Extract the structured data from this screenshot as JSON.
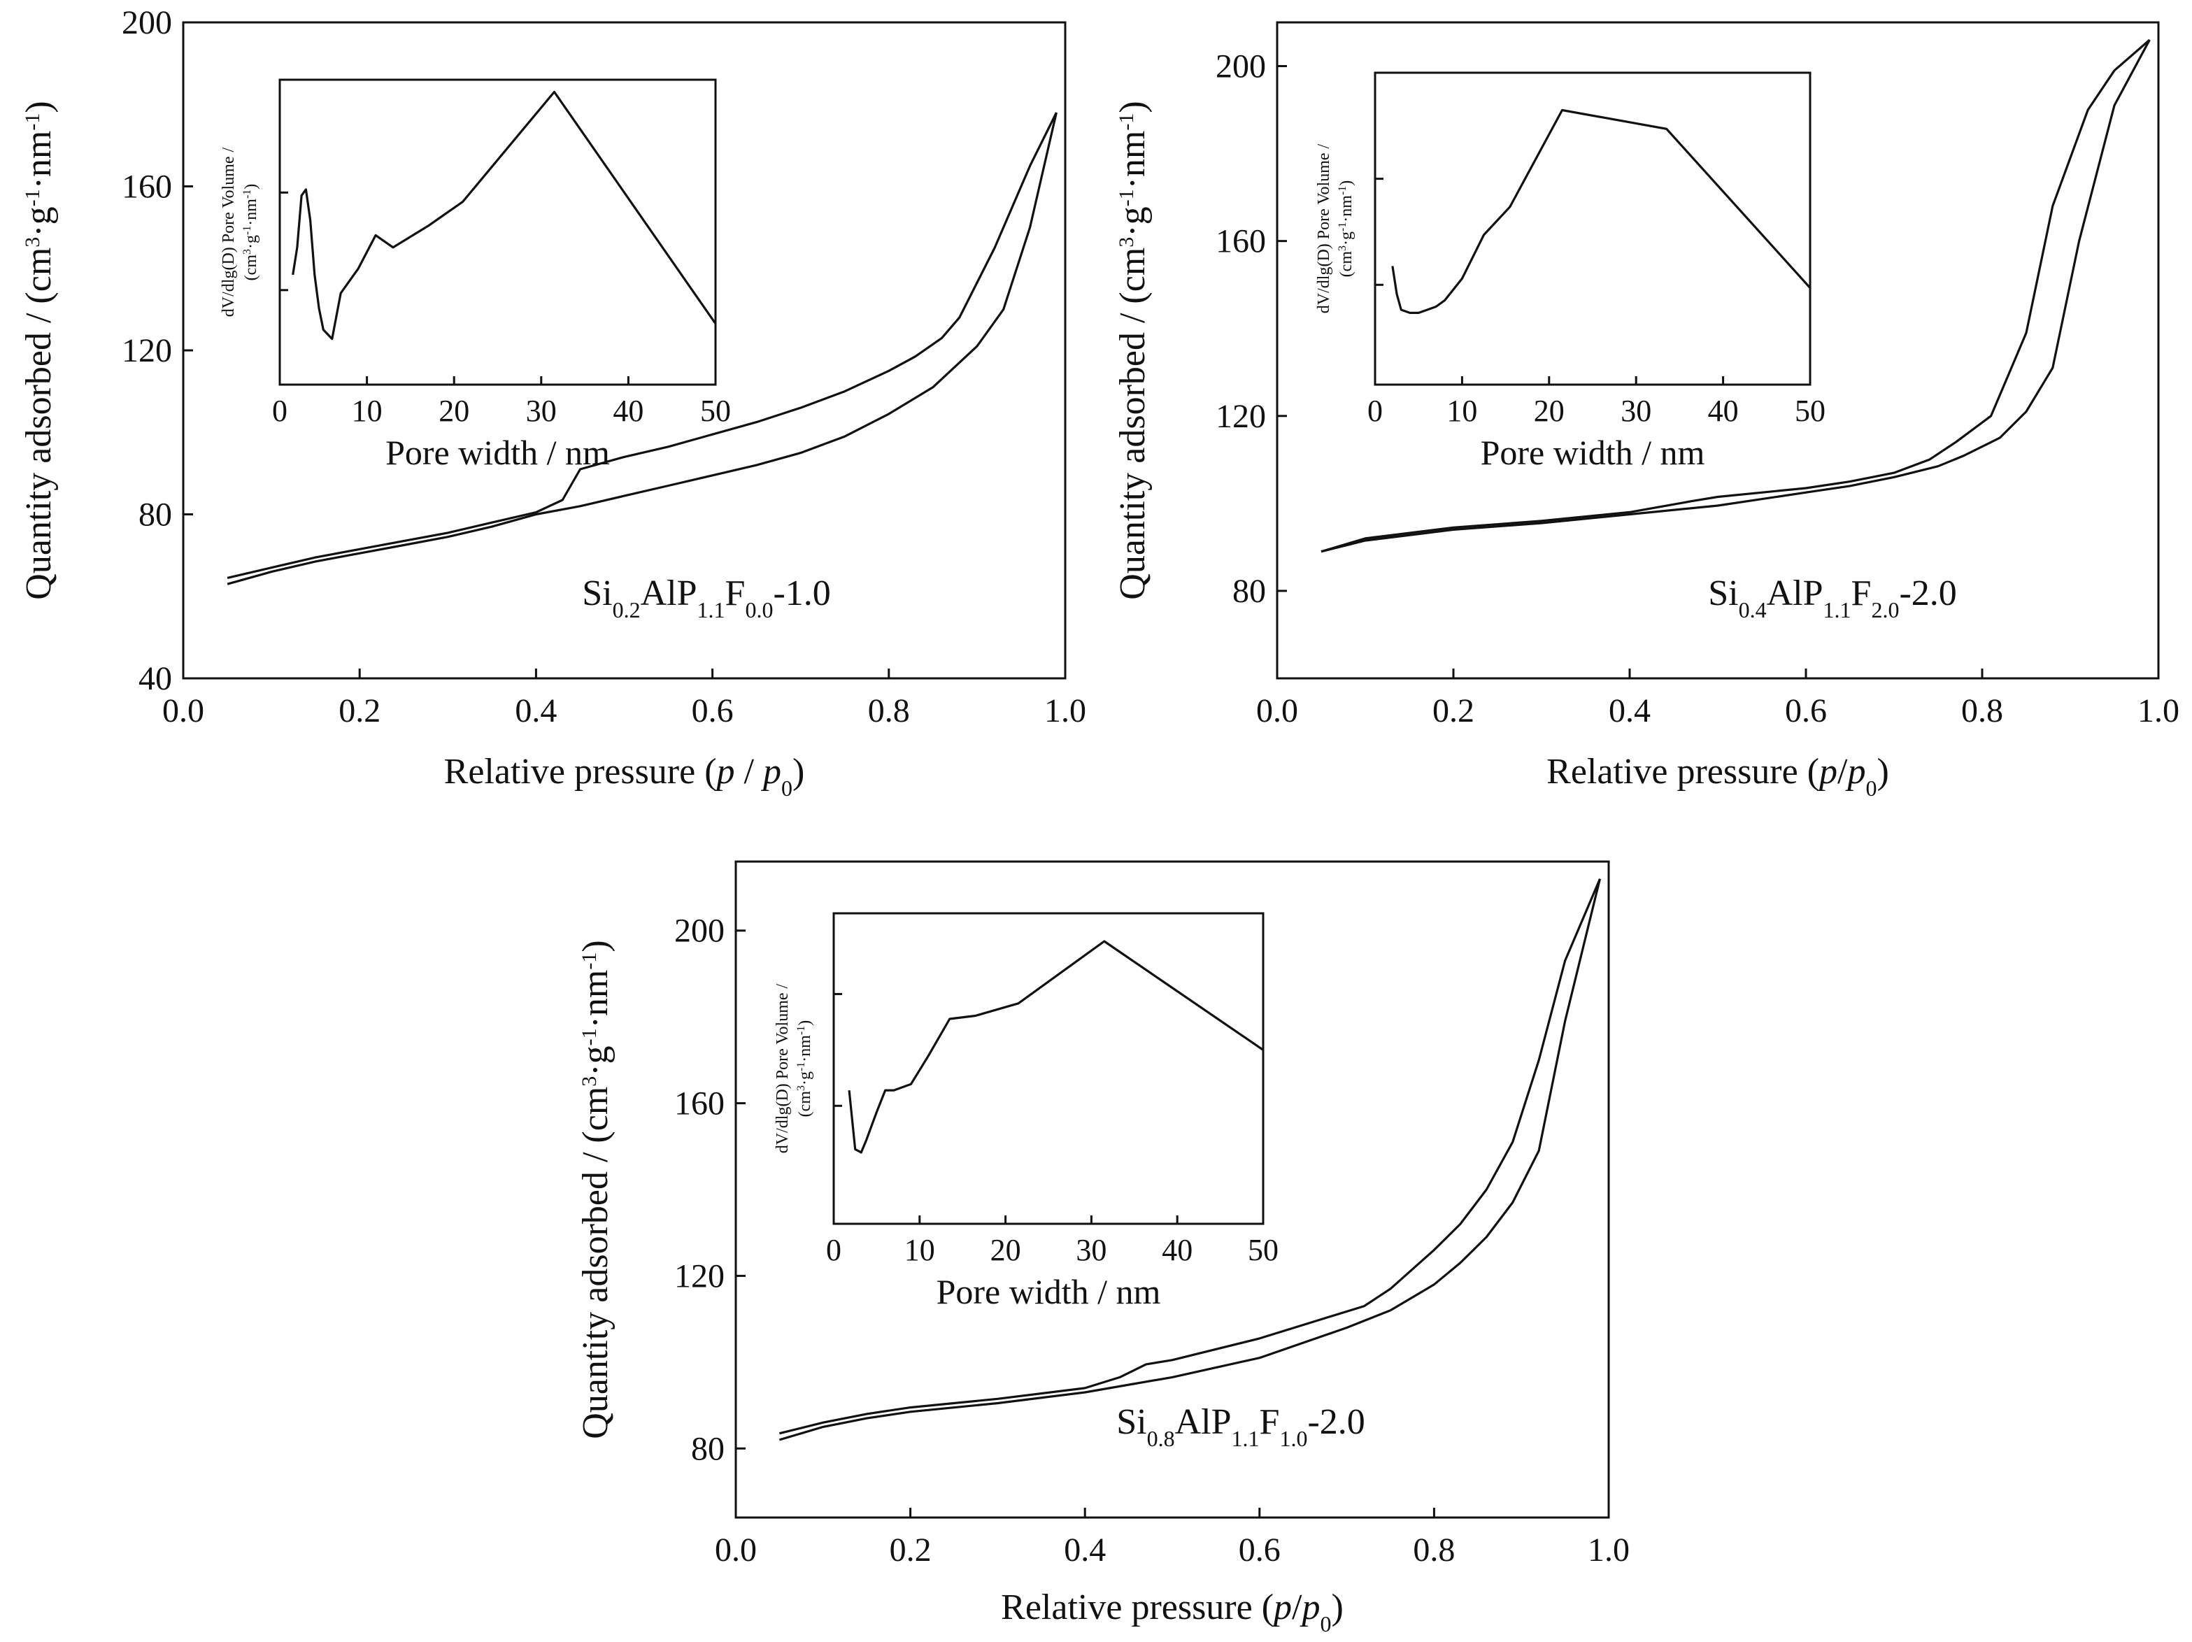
{
  "chart_data": [
    {
      "id": "panel-a",
      "type": "line",
      "title": "",
      "xlabel": "Relative pressure (p / p0)",
      "xlabel_parts": [
        {
          "t": "Relative pressure (",
          "s": "n"
        },
        {
          "t": "p",
          "s": "i"
        },
        {
          "t": " / ",
          "s": "n"
        },
        {
          "t": "p",
          "s": "i"
        },
        {
          "t": "0",
          "s": "sub"
        },
        {
          "t": ")",
          "s": "n"
        }
      ],
      "ylabel": "Quantity adsorbed / (cm3·g-1·nm-1)",
      "ylabel_parts": [
        {
          "t": "Quantity adsorbed / (cm",
          "s": "n"
        },
        {
          "t": "3",
          "s": "sup"
        },
        {
          "t": "·g",
          "s": "n"
        },
        {
          "t": "-1",
          "s": "sup"
        },
        {
          "t": "·nm",
          "s": "n"
        },
        {
          "t": "-1",
          "s": "sup"
        },
        {
          "t": ")",
          "s": "n"
        }
      ],
      "xlim": [
        0,
        1.0
      ],
      "ylim": [
        40,
        200
      ],
      "xticks": [
        "0.0",
        "0.2",
        "0.4",
        "0.6",
        "0.8",
        "1.0"
      ],
      "yticks": [
        "40",
        "80",
        "120",
        "160",
        "200"
      ],
      "sample_label": "Si0.2AlP1.1F0.0-1.0",
      "sample_label_parts": [
        {
          "t": "Si",
          "s": "n"
        },
        {
          "t": "0.2",
          "s": "sub"
        },
        {
          "t": "AlP",
          "s": "n"
        },
        {
          "t": "1.1",
          "s": "sub"
        },
        {
          "t": "F",
          "s": "n"
        },
        {
          "t": "0.0",
          "s": "sub"
        },
        {
          "t": "-1.0",
          "s": "n"
        }
      ],
      "series": [
        {
          "x": [
            0.05,
            0.1,
            0.15,
            0.2,
            0.25,
            0.3,
            0.35,
            0.4,
            0.45,
            0.5,
            0.55,
            0.6,
            0.65,
            0.7,
            0.75,
            0.8,
            0.85,
            0.9,
            0.93,
            0.96,
            0.99
          ],
          "y": [
            63,
            66,
            68.5,
            70.5,
            72.5,
            74.5,
            77,
            80,
            82,
            84.5,
            87,
            89.5,
            92,
            95,
            99,
            104.5,
            111,
            121,
            130,
            150,
            178
          ]
        },
        {
          "x": [
            0.05,
            0.1,
            0.15,
            0.2,
            0.25,
            0.3,
            0.35,
            0.4,
            0.43,
            0.45,
            0.5,
            0.55,
            0.6,
            0.65,
            0.7,
            0.75,
            0.8,
            0.83,
            0.86,
            0.88,
            0.92,
            0.96,
            0.99
          ],
          "y": [
            64.5,
            67,
            69.5,
            71.5,
            73.5,
            75.5,
            78,
            80.5,
            83.5,
            91,
            94,
            96.5,
            99.5,
            102.5,
            106,
            110,
            115,
            118.5,
            123,
            128,
            145,
            165,
            178
          ]
        }
      ],
      "inset": {
        "xlabel": "Pore width / nm",
        "ylabel_line1_parts": [
          {
            "t": "dV/dlg(D) Pore Volume /",
            "s": "n"
          }
        ],
        "ylabel_line2_parts": [
          {
            "t": "(cm",
            "s": "n"
          },
          {
            "t": "3",
            "s": "sup"
          },
          {
            "t": "·g",
            "s": "n"
          },
          {
            "t": "-1",
            "s": "sup"
          },
          {
            "t": "·nm",
            "s": "n"
          },
          {
            "t": "-1",
            "s": "sup"
          },
          {
            "t": ")",
            "s": "n"
          }
        ],
        "xlim": [
          0,
          50
        ],
        "xticks": [
          "0",
          "10",
          "20",
          "30",
          "40",
          "50"
        ],
        "ylim": [
          0,
          1
        ],
        "yticks_count": 2,
        "yticks_values": [
          0.31,
          0.63
        ],
        "x": [
          1.5,
          2,
          2.5,
          3,
          3.5,
          4,
          4.5,
          5,
          6,
          7,
          9,
          11,
          13,
          17,
          21,
          31.5,
          50
        ],
        "y": [
          0.36,
          0.45,
          0.62,
          0.64,
          0.54,
          0.36,
          0.25,
          0.18,
          0.15,
          0.3,
          0.38,
          0.49,
          0.45,
          0.52,
          0.6,
          0.96,
          0.2
        ]
      }
    },
    {
      "id": "panel-b",
      "type": "line",
      "title": "",
      "xlabel": "Relative pressure (p/p0)",
      "xlabel_parts": [
        {
          "t": "Relative pressure (",
          "s": "n"
        },
        {
          "t": "p",
          "s": "i"
        },
        {
          "t": "/",
          "s": "n"
        },
        {
          "t": "p",
          "s": "i"
        },
        {
          "t": "0",
          "s": "sub"
        },
        {
          "t": ")",
          "s": "n"
        }
      ],
      "ylabel": "Quantity adsorbed / (cm3·g-1·nm-1)",
      "ylabel_parts": [
        {
          "t": "Quantity adsorbed / (cm",
          "s": "n"
        },
        {
          "t": "3",
          "s": "sup"
        },
        {
          "t": "·g",
          "s": "n"
        },
        {
          "t": "-1",
          "s": "sup"
        },
        {
          "t": "·nm",
          "s": "n"
        },
        {
          "t": "-1",
          "s": "sup"
        },
        {
          "t": ")",
          "s": "n"
        }
      ],
      "xlim": [
        0,
        1.0
      ],
      "ylim": [
        60,
        210
      ],
      "xticks": [
        "0.0",
        "0.2",
        "0.4",
        "0.6",
        "0.8",
        "1.0"
      ],
      "yticks": [
        "80",
        "120",
        "160",
        "200"
      ],
      "sample_label": "Si0.4AlP1.1F2.0-2.0",
      "sample_label_parts": [
        {
          "t": "Si",
          "s": "n"
        },
        {
          "t": "0.4",
          "s": "sub"
        },
        {
          "t": "AlP",
          "s": "n"
        },
        {
          "t": "1.1",
          "s": "sub"
        },
        {
          "t": "F",
          "s": "n"
        },
        {
          "t": "2.0",
          "s": "sub"
        },
        {
          "t": "-2.0",
          "s": "n"
        }
      ],
      "series": [
        {
          "x": [
            0.05,
            0.1,
            0.2,
            0.3,
            0.4,
            0.5,
            0.6,
            0.65,
            0.7,
            0.75,
            0.78,
            0.82,
            0.85,
            0.88,
            0.91,
            0.95,
            0.99
          ],
          "y": [
            89,
            91.5,
            94,
            95.5,
            97.5,
            99.5,
            102.5,
            104,
            106,
            108.5,
            111,
            115,
            121,
            131,
            160,
            191,
            206
          ]
        },
        {
          "x": [
            0.05,
            0.1,
            0.2,
            0.3,
            0.4,
            0.47,
            0.5,
            0.6,
            0.65,
            0.7,
            0.74,
            0.77,
            0.81,
            0.85,
            0.88,
            0.92,
            0.95,
            0.99
          ],
          "y": [
            89,
            92,
            94.5,
            96,
            98,
            100.5,
            101.5,
            103.5,
            105,
            107,
            110,
            114,
            120,
            139,
            168,
            190,
            199,
            206
          ]
        }
      ],
      "inset": {
        "xlabel": "Pore width / nm",
        "ylabel_line1_parts": [
          {
            "t": "dV/dlg(D) Pore Volume /",
            "s": "n"
          }
        ],
        "ylabel_line2_parts": [
          {
            "t": "(cm",
            "s": "n"
          },
          {
            "t": "3",
            "s": "sup"
          },
          {
            "t": "·g",
            "s": "n"
          },
          {
            "t": "-1",
            "s": "sup"
          },
          {
            "t": "·nm",
            "s": "n"
          },
          {
            "t": "-1",
            "s": "sup"
          },
          {
            "t": ")",
            "s": "n"
          }
        ],
        "xlim": [
          0,
          50
        ],
        "xticks": [
          "0",
          "10",
          "20",
          "30",
          "40",
          "50"
        ],
        "ylim": [
          0,
          1
        ],
        "yticks_count": 2,
        "yticks_values": [
          0.32,
          0.66
        ],
        "x": [
          2,
          2.5,
          3,
          4,
          5,
          6,
          7,
          8,
          10,
          12.5,
          15.5,
          21.5,
          33.5,
          50
        ],
        "y": [
          0.38,
          0.29,
          0.24,
          0.23,
          0.23,
          0.24,
          0.25,
          0.27,
          0.34,
          0.48,
          0.57,
          0.88,
          0.82,
          0.31
        ]
      }
    },
    {
      "id": "panel-c",
      "type": "line",
      "title": "",
      "xlabel": "Relative pressure (p/p0)",
      "xlabel_parts": [
        {
          "t": "Relative pressure (",
          "s": "n"
        },
        {
          "t": "p",
          "s": "i"
        },
        {
          "t": "/",
          "s": "n"
        },
        {
          "t": "p",
          "s": "i"
        },
        {
          "t": "0",
          "s": "sub"
        },
        {
          "t": ")",
          "s": "n"
        }
      ],
      "ylabel": "Quantity adsorbed / (cm3·g-1·nm-1)",
      "ylabel_parts": [
        {
          "t": "Quantity adsorbed / (cm",
          "s": "n"
        },
        {
          "t": "3",
          "s": "sup"
        },
        {
          "t": "·g",
          "s": "n"
        },
        {
          "t": "-1",
          "s": "sup"
        },
        {
          "t": "·nm",
          "s": "n"
        },
        {
          "t": "-1",
          "s": "sup"
        },
        {
          "t": ")",
          "s": "n"
        }
      ],
      "xlim": [
        0,
        1.0
      ],
      "ylim": [
        64,
        216
      ],
      "xticks": [
        "0.0",
        "0.2",
        "0.4",
        "0.6",
        "0.8",
        "1.0"
      ],
      "yticks": [
        "80",
        "120",
        "160",
        "200"
      ],
      "sample_label": "Si0.8AlP1.1F1.0-2.0",
      "sample_label_parts": [
        {
          "t": "Si",
          "s": "n"
        },
        {
          "t": "0.8",
          "s": "sub"
        },
        {
          "t": "AlP",
          "s": "n"
        },
        {
          "t": "1.1",
          "s": "sub"
        },
        {
          "t": "F",
          "s": "n"
        },
        {
          "t": "1.0",
          "s": "sub"
        },
        {
          "t": "-2.0",
          "s": "n"
        }
      ],
      "series": [
        {
          "x": [
            0.05,
            0.1,
            0.15,
            0.2,
            0.3,
            0.4,
            0.5,
            0.6,
            0.7,
            0.75,
            0.8,
            0.83,
            0.86,
            0.89,
            0.92,
            0.95,
            0.99
          ],
          "y": [
            82,
            85,
            87,
            88.5,
            90.5,
            93,
            96.5,
            101,
            108,
            112,
            118,
            123,
            129,
            137,
            149,
            179,
            212
          ]
        },
        {
          "x": [
            0.05,
            0.1,
            0.15,
            0.2,
            0.3,
            0.4,
            0.44,
            0.47,
            0.5,
            0.6,
            0.68,
            0.72,
            0.75,
            0.8,
            0.83,
            0.86,
            0.89,
            0.92,
            0.95,
            0.99
          ],
          "y": [
            83.5,
            86,
            88,
            89.5,
            91.5,
            94,
            96.5,
            99.5,
            100.5,
            105.5,
            110.5,
            113,
            117,
            126,
            132,
            140,
            151,
            170,
            193,
            212
          ]
        }
      ],
      "inset": {
        "xlabel": "Pore width / nm",
        "ylabel_line1_parts": [
          {
            "t": "dV/dlg(D) Pore Volume /",
            "s": "n"
          }
        ],
        "ylabel_line2_parts": [
          {
            "t": "(cm",
            "s": "n"
          },
          {
            "t": "3",
            "s": "sup"
          },
          {
            "t": "·g",
            "s": "n"
          },
          {
            "t": "-1",
            "s": "sup"
          },
          {
            "t": "·nm",
            "s": "n"
          },
          {
            "t": "-1",
            "s": "sup"
          },
          {
            "t": ")",
            "s": "n"
          }
        ],
        "xlim": [
          0,
          50
        ],
        "xticks": [
          "0",
          "10",
          "20",
          "30",
          "40",
          "50"
        ],
        "ylim": [
          0,
          1
        ],
        "yticks_count": 2,
        "yticks_values": [
          0.38,
          0.74
        ],
        "x": [
          1.8,
          2.5,
          3.2,
          3.8,
          5,
          6,
          7,
          9,
          11,
          13.5,
          16.5,
          21.5,
          31.5,
          50
        ],
        "y": [
          0.43,
          0.24,
          0.23,
          0.27,
          0.36,
          0.43,
          0.43,
          0.45,
          0.54,
          0.66,
          0.67,
          0.71,
          0.91,
          0.56
        ]
      }
    }
  ]
}
